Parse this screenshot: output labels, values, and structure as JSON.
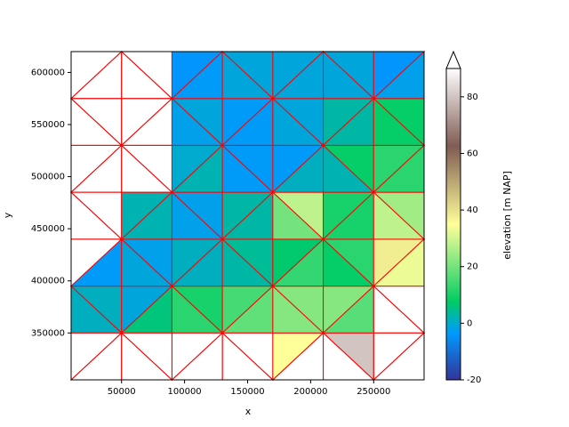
{
  "chart_data": {
    "type": "tripcolor",
    "x_label": "x",
    "y_label": "y",
    "x": [
      10000,
      50000,
      90000,
      130000,
      170000,
      210000,
      250000,
      290000
    ],
    "y": [
      305000,
      350000,
      395000,
      440000,
      485000,
      530000,
      575000,
      620000
    ],
    "xlim": [
      10000,
      290000
    ],
    "ylim": [
      305000,
      620000
    ],
    "xticks": [
      50000,
      100000,
      150000,
      200000,
      250000
    ],
    "yticks": [
      350000,
      400000,
      450000,
      500000,
      550000,
      600000
    ],
    "edge_color": "#ff0000",
    "colormap": "terrain",
    "clim": [
      -20,
      90
    ],
    "colorbar_extend": "max",
    "colorbar_label": "elevation [m NAP]",
    "colorbar_ticks": [
      -20,
      0,
      20,
      40,
      60,
      80
    ],
    "values": [
      [
        [
          null,
          null
        ],
        [
          null,
          null
        ],
        [
          null,
          null
        ],
        [
          null,
          null
        ],
        [
          35,
          null
        ],
        [
          80,
          null
        ],
        [
          null,
          null
        ]
      ],
      [
        [
          1,
          1
        ],
        [
          -1,
          6
        ],
        [
          10,
          12
        ],
        [
          15,
          18
        ],
        [
          22,
          22
        ],
        [
          22,
          17
        ],
        [
          null,
          null
        ]
      ],
      [
        [
          null,
          -3
        ],
        [
          -2,
          -1
        ],
        [
          1,
          1
        ],
        [
          4,
          3
        ],
        [
          7,
          13
        ],
        [
          12,
          8
        ],
        [
          38,
          33
        ]
      ],
      [
        [
          null,
          null
        ],
        [
          2,
          2
        ],
        [
          -2,
          -2
        ],
        [
          3,
          3
        ],
        [
          28,
          20
        ],
        [
          10,
          10
        ],
        [
          25,
          28
        ]
      ],
      [
        [
          null,
          null
        ],
        [
          null,
          null
        ],
        [
          0,
          2
        ],
        [
          -3,
          -3
        ],
        [
          -3,
          1
        ],
        [
          8,
          2
        ],
        [
          12,
          12
        ]
      ],
      [
        [
          null,
          null
        ],
        [
          null,
          null
        ],
        [
          -1,
          -2
        ],
        [
          -3,
          -3
        ],
        [
          -1,
          -1
        ],
        [
          3,
          3
        ],
        [
          8,
          8
        ]
      ],
      [
        [
          null,
          null
        ],
        [
          null,
          null
        ],
        [
          -4,
          -3
        ],
        [
          -1,
          -1
        ],
        [
          -1,
          -1
        ],
        [
          -1,
          -1
        ],
        [
          -4,
          -2
        ]
      ]
    ]
  }
}
